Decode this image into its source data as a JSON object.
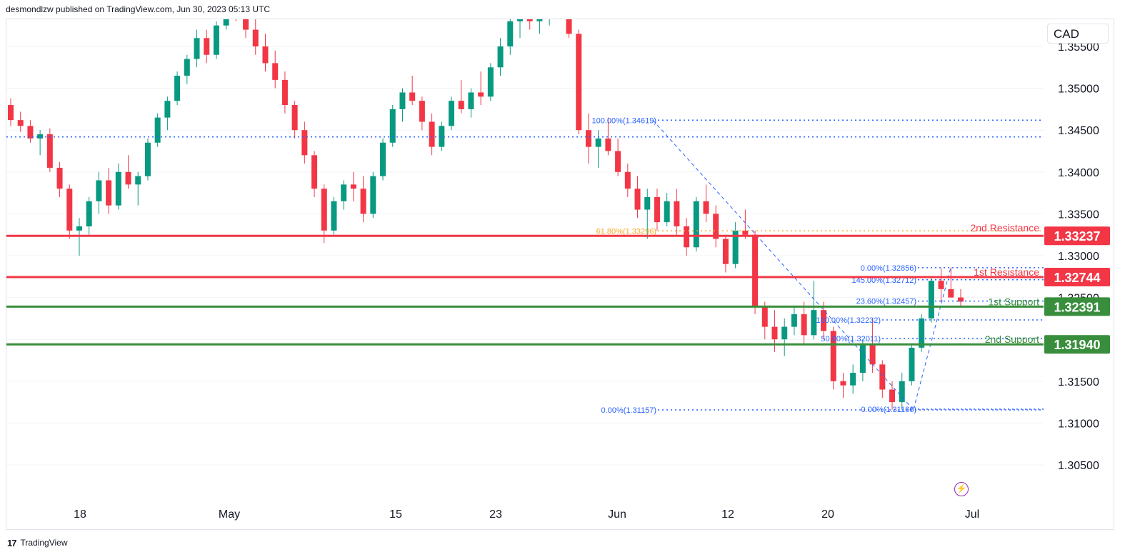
{
  "header": {
    "publisher_text": "desmondlzw published on TradingView.com, Jun 30, 2023 05:13 UTC"
  },
  "footer": {
    "brand": "TradingView"
  },
  "currency": {
    "label": "CAD"
  },
  "colors": {
    "up": "#089981",
    "down": "#f23645",
    "resistance": "#f23645",
    "support": "#388e3c",
    "fib_blue": "#2962ff",
    "fib_orange": "#f9a825",
    "axis_text": "#131722",
    "grid": "#f0f3fa"
  },
  "chart_data": {
    "type": "candlestick",
    "symbol_currency": "CAD",
    "y_axis": {
      "ticks": [
        1.355,
        1.35,
        1.345,
        1.34,
        1.335,
        1.33,
        1.325,
        1.32,
        1.315,
        1.31,
        1.305
      ],
      "tick_labels": [
        "1.35500",
        "1.35000",
        "1.34500",
        "1.34000",
        "1.33500",
        "1.33000",
        "1.32500",
        "1.32000",
        "1.31500",
        "1.31000",
        "1.30500"
      ]
    },
    "x_axis": {
      "tick_labels": [
        "18",
        "May",
        "15",
        "23",
        "Jun",
        "12",
        "20",
        "Jul"
      ]
    },
    "levels": [
      {
        "label": "2nd Resistance",
        "value": 1.33237,
        "value_text": "1.33237",
        "kind": "resistance"
      },
      {
        "label": "1st Resistance",
        "value": 1.32744,
        "value_text": "1.32744",
        "kind": "resistance"
      },
      {
        "label": "1st Support",
        "value": 1.32391,
        "value_text": "1.32391",
        "kind": "support"
      },
      {
        "label": "2nd Support",
        "value": 1.3194,
        "value_text": "1.31940",
        "kind": "support"
      }
    ],
    "fib_levels": [
      {
        "text": "100.00%(1.34619)",
        "value": 1.34619,
        "color": "blue"
      },
      {
        "text": "61.80%(1.33296)",
        "value": 1.33296,
        "color": "orange"
      },
      {
        "text": "0.00%(1.31157)",
        "value": 1.31157,
        "color": "blue"
      },
      {
        "text": "0.00%(1.32856)",
        "value": 1.32856,
        "color": "blue"
      },
      {
        "text": "145.00%(1.32712)",
        "value": 1.32712,
        "color": "blue"
      },
      {
        "text": "23.60%(1.32457)",
        "value": 1.32457,
        "color": "blue"
      },
      {
        "text": "100.00%(1.32232)",
        "value": 1.32232,
        "color": "blue"
      },
      {
        "text": "50.00%(1.32011)",
        "value": 1.32011,
        "color": "blue"
      },
      {
        "text": "0.00%(1.31166)",
        "value": 1.31166,
        "color": "blue"
      }
    ],
    "horizontal_dotted": [
      1.34419
    ],
    "candles": [
      [
        1.348,
        1.3488,
        1.3455,
        1.3462
      ],
      [
        1.3462,
        1.3472,
        1.3448,
        1.3455
      ],
      [
        1.3455,
        1.3462,
        1.3435,
        1.344
      ],
      [
        1.344,
        1.345,
        1.342,
        1.3445
      ],
      [
        1.3445,
        1.3452,
        1.34,
        1.3405
      ],
      [
        1.3405,
        1.3412,
        1.337,
        1.338
      ],
      [
        1.338,
        1.3385,
        1.332,
        1.333
      ],
      [
        1.333,
        1.3345,
        1.33,
        1.3335
      ],
      [
        1.3335,
        1.337,
        1.3325,
        1.3365
      ],
      [
        1.3365,
        1.34,
        1.335,
        1.339
      ],
      [
        1.339,
        1.3405,
        1.335,
        1.336
      ],
      [
        1.336,
        1.341,
        1.3355,
        1.34
      ],
      [
        1.34,
        1.342,
        1.338,
        1.3385
      ],
      [
        1.3385,
        1.34,
        1.336,
        1.3395
      ],
      [
        1.3395,
        1.344,
        1.339,
        1.3435
      ],
      [
        1.3435,
        1.347,
        1.343,
        1.3465
      ],
      [
        1.3465,
        1.349,
        1.345,
        1.3485
      ],
      [
        1.3485,
        1.352,
        1.348,
        1.3515
      ],
      [
        1.3515,
        1.354,
        1.3505,
        1.3535
      ],
      [
        1.3535,
        1.357,
        1.3525,
        1.356
      ],
      [
        1.356,
        1.357,
        1.353,
        1.354
      ],
      [
        1.354,
        1.358,
        1.3535,
        1.3575
      ],
      [
        1.3575,
        1.361,
        1.357,
        1.3605
      ],
      [
        1.3605,
        1.362,
        1.358,
        1.36
      ],
      [
        1.36,
        1.3605,
        1.356,
        1.357
      ],
      [
        1.357,
        1.3585,
        1.354,
        1.355
      ],
      [
        1.355,
        1.3565,
        1.352,
        1.353
      ],
      [
        1.353,
        1.3545,
        1.35,
        1.351
      ],
      [
        1.351,
        1.352,
        1.347,
        1.348
      ],
      [
        1.348,
        1.3485,
        1.344,
        1.345
      ],
      [
        1.345,
        1.346,
        1.341,
        1.342
      ],
      [
        1.342,
        1.3425,
        1.337,
        1.338
      ],
      [
        1.338,
        1.3385,
        1.3315,
        1.333
      ],
      [
        1.333,
        1.337,
        1.3325,
        1.3365
      ],
      [
        1.3365,
        1.339,
        1.3355,
        1.3385
      ],
      [
        1.3385,
        1.34,
        1.3365,
        1.338
      ],
      [
        1.338,
        1.3395,
        1.334,
        1.335
      ],
      [
        1.335,
        1.34,
        1.3345,
        1.3395
      ],
      [
        1.3395,
        1.344,
        1.339,
        1.3435
      ],
      [
        1.3435,
        1.348,
        1.343,
        1.3475
      ],
      [
        1.3475,
        1.35,
        1.346,
        1.3495
      ],
      [
        1.3495,
        1.3515,
        1.348,
        1.3485
      ],
      [
        1.3485,
        1.349,
        1.345,
        1.346
      ],
      [
        1.346,
        1.347,
        1.342,
        1.343
      ],
      [
        1.343,
        1.346,
        1.3425,
        1.3455
      ],
      [
        1.3455,
        1.349,
        1.345,
        1.3485
      ],
      [
        1.3485,
        1.351,
        1.347,
        1.3475
      ],
      [
        1.3475,
        1.35,
        1.3465,
        1.3495
      ],
      [
        1.3495,
        1.352,
        1.348,
        1.349
      ],
      [
        1.349,
        1.353,
        1.3485,
        1.3525
      ],
      [
        1.3525,
        1.356,
        1.3515,
        1.355
      ],
      [
        1.355,
        1.3585,
        1.354,
        1.358
      ],
      [
        1.358,
        1.36,
        1.356,
        1.3595
      ],
      [
        1.3595,
        1.361,
        1.357,
        1.358
      ],
      [
        1.358,
        1.36,
        1.3565,
        1.359
      ],
      [
        1.359,
        1.361,
        1.3575,
        1.3605
      ],
      [
        1.3605,
        1.3615,
        1.359,
        1.36
      ],
      [
        1.36,
        1.361,
        1.356,
        1.3565
      ],
      [
        1.3565,
        1.357,
        1.3445,
        1.345
      ],
      [
        1.345,
        1.347,
        1.341,
        1.343
      ],
      [
        1.343,
        1.345,
        1.3405,
        1.344
      ],
      [
        1.344,
        1.3465,
        1.342,
        1.3425
      ],
      [
        1.3425,
        1.344,
        1.3395,
        1.34
      ],
      [
        1.34,
        1.341,
        1.337,
        1.338
      ],
      [
        1.338,
        1.3395,
        1.3345,
        1.3355
      ],
      [
        1.3355,
        1.338,
        1.332,
        1.337
      ],
      [
        1.337,
        1.338,
        1.333,
        1.334
      ],
      [
        1.334,
        1.3375,
        1.3335,
        1.3365
      ],
      [
        1.3365,
        1.338,
        1.3325,
        1.3335
      ],
      [
        1.3335,
        1.3345,
        1.33,
        1.331
      ],
      [
        1.331,
        1.337,
        1.3305,
        1.3365
      ],
      [
        1.3365,
        1.3385,
        1.334,
        1.335
      ],
      [
        1.335,
        1.336,
        1.331,
        1.332
      ],
      [
        1.332,
        1.3325,
        1.328,
        1.329
      ],
      [
        1.329,
        1.334,
        1.3285,
        1.333
      ],
      [
        1.333,
        1.3355,
        1.332,
        1.3325
      ],
      [
        1.3325,
        1.333,
        1.323,
        1.324
      ],
      [
        1.324,
        1.3245,
        1.32,
        1.3215
      ],
      [
        1.3215,
        1.3235,
        1.3185,
        1.32
      ],
      [
        1.32,
        1.3225,
        1.318,
        1.3215
      ],
      [
        1.3215,
        1.324,
        1.3205,
        1.323
      ],
      [
        1.323,
        1.3245,
        1.3195,
        1.3205
      ],
      [
        1.3205,
        1.327,
        1.32,
        1.3235
      ],
      [
        1.3235,
        1.3245,
        1.32,
        1.321
      ],
      [
        1.321,
        1.3215,
        1.314,
        1.315
      ],
      [
        1.315,
        1.316,
        1.313,
        1.3145
      ],
      [
        1.3145,
        1.317,
        1.3135,
        1.316
      ],
      [
        1.316,
        1.32,
        1.315,
        1.3195
      ],
      [
        1.3195,
        1.3225,
        1.316,
        1.317
      ],
      [
        1.317,
        1.3175,
        1.313,
        1.314
      ],
      [
        1.314,
        1.315,
        1.3116,
        1.3125
      ],
      [
        1.3125,
        1.316,
        1.3116,
        1.315
      ],
      [
        1.315,
        1.3195,
        1.3145,
        1.319
      ],
      [
        1.319,
        1.323,
        1.3185,
        1.3225
      ],
      [
        1.3225,
        1.3275,
        1.322,
        1.327
      ],
      [
        1.327,
        1.3285,
        1.3245,
        1.326
      ],
      [
        1.326,
        1.3286,
        1.325,
        1.325
      ],
      [
        1.325,
        1.326,
        1.3238,
        1.3245
      ]
    ]
  }
}
